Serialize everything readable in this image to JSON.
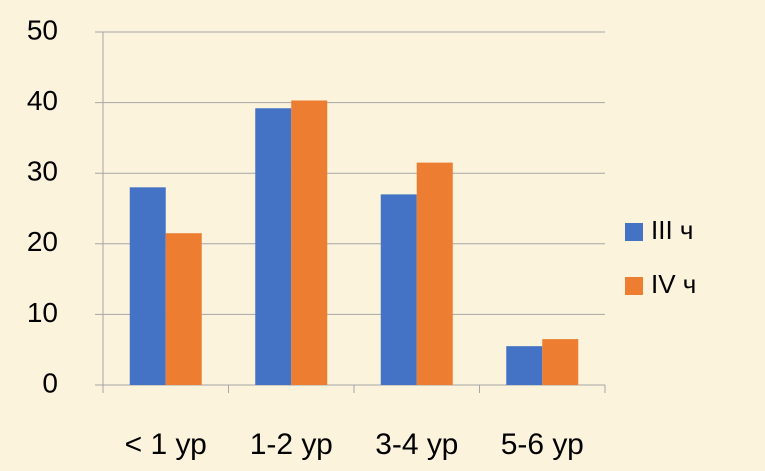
{
  "chart_data": {
    "type": "bar",
    "categories": [
      "< 1 ур",
      "1-2 ур",
      "3-4 ур",
      "5-6 ур"
    ],
    "series": [
      {
        "name": "III ч",
        "color": "#4472c4",
        "values": [
          28,
          39.2,
          27,
          5.5
        ]
      },
      {
        "name": "IV ч",
        "color": "#ed7d31",
        "values": [
          21.5,
          40.3,
          31.5,
          6.5
        ]
      }
    ],
    "ylim": [
      0,
      50
    ],
    "yticks": [
      0,
      10,
      20,
      30,
      40,
      50
    ],
    "grid": true,
    "legend": "right"
  }
}
